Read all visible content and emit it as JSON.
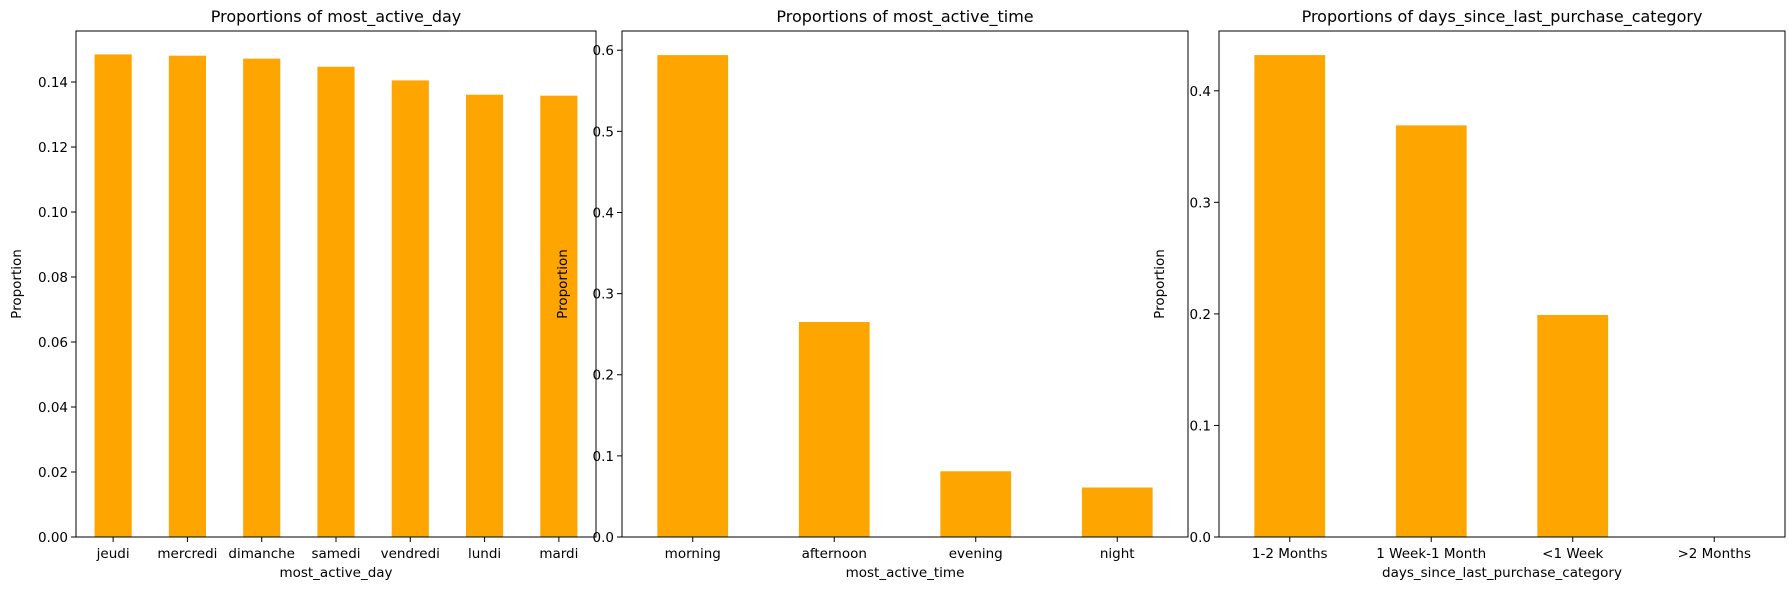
{
  "chart_data": [
    {
      "type": "bar",
      "title": "Proportions of most_active_day",
      "xlabel": "most_active_day",
      "ylabel": "Proportion",
      "categories": [
        "jeudi",
        "mercredi",
        "dimanche",
        "samedi",
        "vendredi",
        "lundi",
        "mardi"
      ],
      "values": [
        0.1485,
        0.1481,
        0.1472,
        0.1447,
        0.1405,
        0.1361,
        0.1358
      ],
      "ylim": [
        0,
        0.1557
      ],
      "yticks": [
        0.0,
        0.02,
        0.04,
        0.06,
        0.08,
        0.1,
        0.12,
        0.14
      ],
      "ytick_labels": [
        "0.00",
        "0.02",
        "0.04",
        "0.06",
        "0.08",
        "0.10",
        "0.12",
        "0.14"
      ],
      "bar_color": "#FFA500",
      "grid": false
    },
    {
      "type": "bar",
      "title": "Proportions of most_active_time",
      "xlabel": "most_active_time",
      "ylabel": "Proportion",
      "categories": [
        "morning",
        "afternoon",
        "evening",
        "night"
      ],
      "values": [
        0.594,
        0.265,
        0.081,
        0.061
      ],
      "ylim": [
        0,
        0.6237
      ],
      "yticks": [
        0.0,
        0.1,
        0.2,
        0.3,
        0.4,
        0.5,
        0.6
      ],
      "ytick_labels": [
        "0.0",
        "0.1",
        "0.2",
        "0.3",
        "0.4",
        "0.5",
        "0.6"
      ],
      "bar_color": "#FFA500",
      "grid": false
    },
    {
      "type": "bar",
      "title": "Proportions of days_since_last_purchase_category",
      "xlabel": "days_since_last_purchase_category",
      "ylabel": "Proportion",
      "categories": [
        "1-2 Months",
        "1 Week-1 Month",
        "<1 Week",
        ">2 Months"
      ],
      "values": [
        0.432,
        0.369,
        0.199,
        0.0
      ],
      "ylim": [
        0,
        0.4536
      ],
      "yticks": [
        0.0,
        0.1,
        0.2,
        0.3,
        0.4
      ],
      "ytick_labels": [
        "0.0",
        "0.1",
        "0.2",
        "0.3",
        "0.4"
      ],
      "bar_color": "#FFA500",
      "grid": false
    }
  ]
}
